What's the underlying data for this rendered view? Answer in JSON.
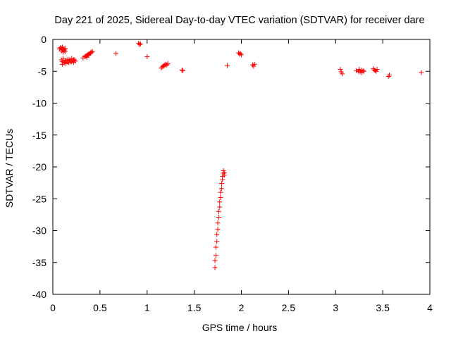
{
  "chart_data": {
    "type": "scatter",
    "title": "Day 221 of 2025, Sidereal Day-to-day VTEC variation (SDTVAR) for receiver dare",
    "xlabel": "GPS time / hours",
    "ylabel": "SDTVAR / TECUs",
    "xlim": [
      0,
      4
    ],
    "ylim": [
      -40,
      0
    ],
    "xticks": [
      0,
      0.5,
      1,
      1.5,
      2,
      2.5,
      3,
      3.5,
      4
    ],
    "xtick_labels": [
      "0",
      "0.5",
      "1",
      "1.5",
      "2",
      "2.5",
      "3",
      "3.5",
      "4"
    ],
    "yticks": [
      0,
      -5,
      -10,
      -15,
      -20,
      -25,
      -30,
      -35,
      -40
    ],
    "ytick_labels": [
      "0",
      "-5",
      "-10",
      "-15",
      "-20",
      "-25",
      "-30",
      "-35",
      "-40"
    ],
    "marker": "+",
    "marker_color": "#ff0000",
    "series": [
      {
        "name": "SDTVAR",
        "x": [
          0.07,
          0.08,
          0.09,
          0.1,
          0.11,
          0.12,
          0.13,
          0.1,
          0.09,
          0.11,
          0.13,
          0.12,
          0.09,
          0.1,
          0.11,
          0.12,
          0.13,
          0.14,
          0.15,
          0.16,
          0.17,
          0.18,
          0.19,
          0.2,
          0.21,
          0.22,
          0.23,
          0.24,
          0.1,
          0.12,
          0.14,
          0.16,
          0.18,
          0.2,
          0.22,
          0.32,
          0.34,
          0.35,
          0.36,
          0.37,
          0.38,
          0.39,
          0.4,
          0.41,
          0.42,
          0.36,
          0.38,
          0.67,
          0.91,
          0.92,
          0.93,
          1.0,
          1.15,
          1.16,
          1.17,
          1.18,
          1.19,
          1.2,
          1.21,
          1.22,
          1.37,
          1.38,
          1.72,
          1.72,
          1.73,
          1.73,
          1.74,
          1.74,
          1.75,
          1.75,
          1.76,
          1.76,
          1.77,
          1.77,
          1.78,
          1.78,
          1.79,
          1.79,
          1.8,
          1.8,
          1.81,
          1.81,
          1.82,
          1.82,
          1.85,
          1.97,
          1.98,
          1.99,
          2.0,
          2.12,
          2.13,
          2.14,
          3.05,
          3.06,
          3.07,
          3.22,
          3.24,
          3.25,
          3.26,
          3.27,
          3.28,
          3.29,
          3.3,
          3.4,
          3.41,
          3.42,
          3.43,
          3.44,
          3.56,
          3.57,
          3.91
        ],
        "y": [
          -1.5,
          -1.3,
          -1.4,
          -1.6,
          -1.5,
          -1.7,
          -1.4,
          -1.2,
          -1.8,
          -2.0,
          -1.9,
          -1.6,
          -3.2,
          -3.5,
          -3.0,
          -3.6,
          -3.3,
          -3.8,
          -3.4,
          -3.1,
          -3.6,
          -3.2,
          -3.5,
          -3.0,
          -3.3,
          -3.6,
          -3.2,
          -3.4,
          -3.9,
          -3.7,
          -3.4,
          -3.6,
          -3.3,
          -3.5,
          -3.2,
          -2.9,
          -2.7,
          -2.6,
          -2.5,
          -2.4,
          -2.3,
          -2.2,
          -2.1,
          -2.0,
          -1.9,
          -2.8,
          -2.5,
          -2.2,
          -0.6,
          -0.8,
          -0.7,
          -2.7,
          -4.5,
          -4.3,
          -4.2,
          -4.1,
          -4.0,
          -3.9,
          -4.0,
          -3.8,
          -4.8,
          -4.9,
          -35.8,
          -34.7,
          -33.9,
          -32.6,
          -31.7,
          -30.6,
          -29.8,
          -28.8,
          -27.9,
          -27.0,
          -26.3,
          -25.5,
          -24.8,
          -24.0,
          -23.4,
          -22.6,
          -22.0,
          -21.5,
          -21.0,
          -20.6,
          -20.9,
          -21.3,
          -4.1,
          -2.1,
          -2.3,
          -2.2,
          -2.4,
          -4.0,
          -4.2,
          -3.9,
          -4.7,
          -5.1,
          -5.4,
          -4.9,
          -5.0,
          -4.7,
          -5.1,
          -4.8,
          -5.2,
          -4.9,
          -5.0,
          -4.6,
          -4.8,
          -4.9,
          -5.0,
          -4.7,
          -5.8,
          -5.6,
          -5.2
        ]
      }
    ]
  }
}
